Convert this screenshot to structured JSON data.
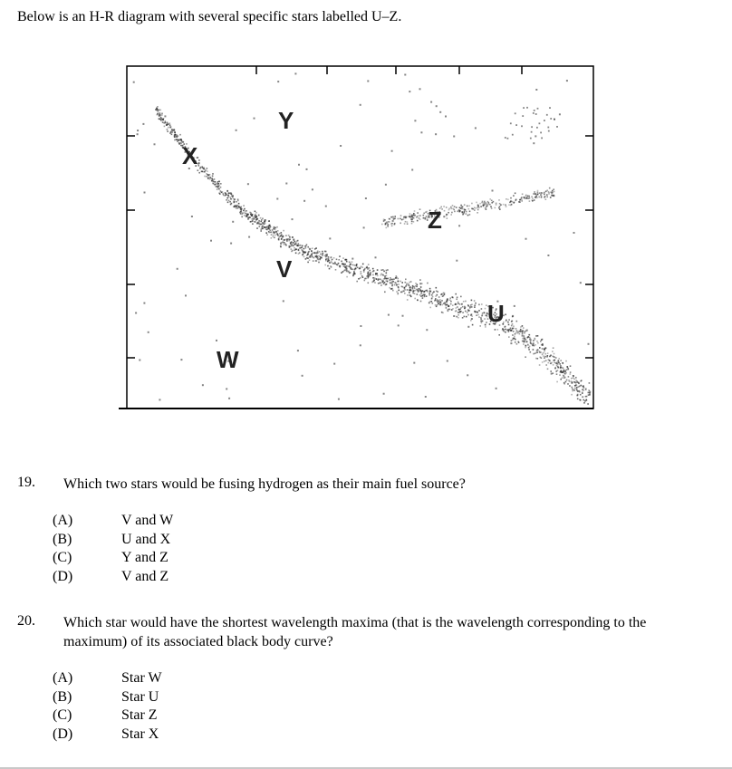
{
  "intro": "Below is an H-R diagram with several specific stars labelled U–Z.",
  "diagram": {
    "labels": {
      "U": "U",
      "V": "V",
      "W": "W",
      "X": "X",
      "Y": "Y",
      "Z": "Z"
    }
  },
  "questions": [
    {
      "number": "19.",
      "text": "Which two stars would be fusing hydrogen as their main fuel source?",
      "options": [
        {
          "letter": "(A)",
          "answer": "V and W"
        },
        {
          "letter": "(B)",
          "answer": "U and X"
        },
        {
          "letter": "(C)",
          "answer": "Y and Z"
        },
        {
          "letter": "(D)",
          "answer": "V and Z"
        }
      ]
    },
    {
      "number": "20.",
      "text": "Which star would have the shortest wavelength maxima (that is the wavelength corresponding to the maximum) of its associated black body curve?",
      "options": [
        {
          "letter": "(A)",
          "answer": "Star W"
        },
        {
          "letter": "(B)",
          "answer": "Star U"
        },
        {
          "letter": "(C)",
          "answer": "Star Z"
        },
        {
          "letter": "(D)",
          "answer": "Star X"
        }
      ]
    }
  ]
}
